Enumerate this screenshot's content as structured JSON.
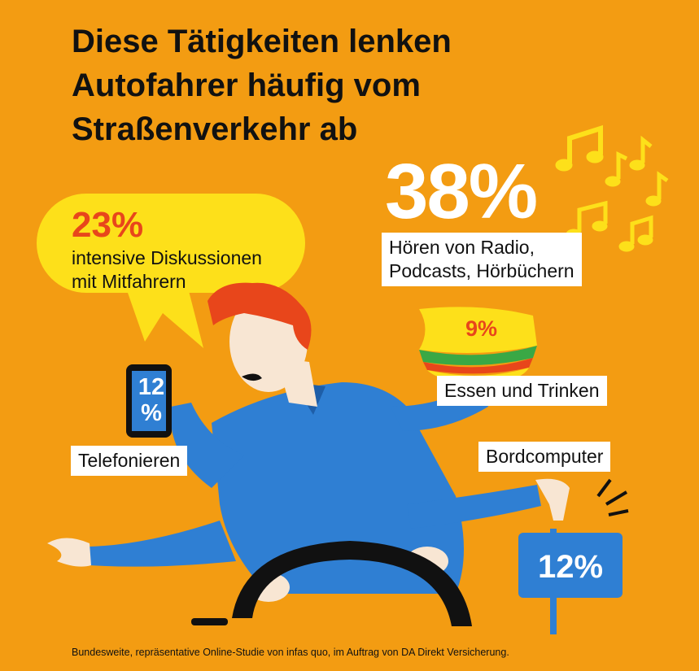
{
  "title": {
    "line1": "Diese Tätigkeiten lenken",
    "line2": "Autofahrer häufig vom",
    "line3": "Straßenverkehr ab"
  },
  "radio": {
    "percent": "38%",
    "line1": "Hören von Radio,",
    "line2": "Podcasts, Hörbüchern"
  },
  "discussion": {
    "percent": "23%",
    "line1": "intensive Diskussionen",
    "line2": "mit Mitfahrern"
  },
  "eating": {
    "percent": "9%",
    "label": "Essen und Trinken"
  },
  "phone": {
    "percent_line1": "12",
    "percent_line2": "%",
    "label": "Telefonieren"
  },
  "board_computer": {
    "label": "Bordcomputer",
    "percent": "12%"
  },
  "footer": "Bundesweite, repräsentative Online-Studie von infas quo, im Auftrag von DA Direkt Versicherung.",
  "colors": {
    "background": "#f39c12",
    "accent_red": "#e8461b",
    "shirt_blue": "#2f7fd3",
    "bubble_yellow": "#fde01a",
    "hair": "#e8461b"
  }
}
